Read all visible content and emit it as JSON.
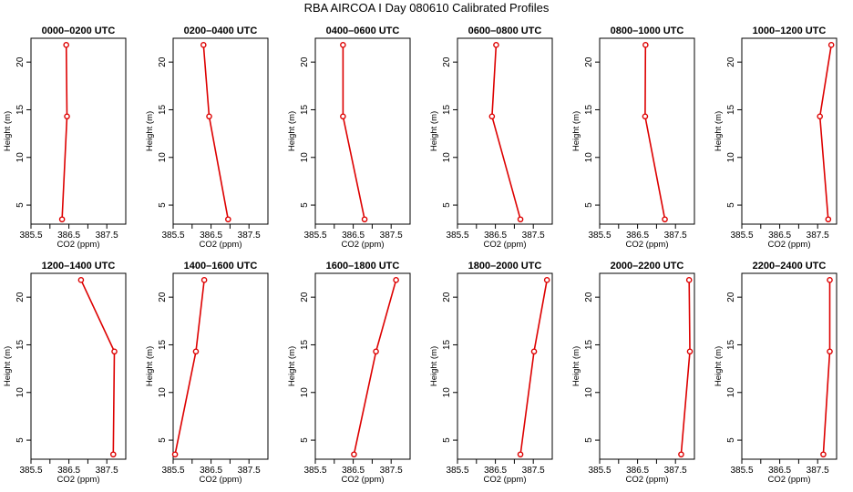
{
  "title": "RBA AIRCOA I  Day 080610  Calibrated Profiles",
  "colors": {
    "line": "#dd0000",
    "axis": "#000000",
    "background": "#ffffff"
  },
  "chart_data": {
    "type": "line",
    "layout": "2x6 panel grid",
    "xlabel": "CO2 (ppm)",
    "ylabel": "Height (m)",
    "xlim": [
      385.5,
      388.0
    ],
    "ylim": [
      3,
      22.5
    ],
    "xticks": [
      385.5,
      386,
      386.5,
      387,
      387.5
    ],
    "xtick_labels": [
      "385.5",
      "",
      "386.5",
      "",
      "387.5"
    ],
    "yticks": [
      5,
      10,
      15,
      20
    ],
    "ytick_labels": [
      "5",
      "10",
      "15",
      "20"
    ],
    "grid": false,
    "heights": [
      3.5,
      14.3,
      21.8
    ],
    "panels": [
      {
        "title": "0000–0200 UTC",
        "co2": [
          386.32,
          386.45,
          386.43
        ]
      },
      {
        "title": "0200–0400 UTC",
        "co2": [
          386.95,
          386.45,
          386.3
        ]
      },
      {
        "title": "0400–0600 UTC",
        "co2": [
          386.8,
          386.23,
          386.23
        ]
      },
      {
        "title": "0600–0800 UTC",
        "co2": [
          387.16,
          386.41,
          386.52
        ]
      },
      {
        "title": "0800–1000 UTC",
        "co2": [
          387.22,
          386.7,
          386.71
        ]
      },
      {
        "title": "1000–1200 UTC",
        "co2": [
          387.78,
          387.56,
          387.86
        ]
      },
      {
        "title": "1200–1400 UTC",
        "co2": [
          387.67,
          387.7,
          386.82
        ]
      },
      {
        "title": "1400–1600 UTC",
        "co2": [
          385.55,
          386.1,
          386.32
        ]
      },
      {
        "title": "1600–1800 UTC",
        "co2": [
          386.52,
          387.1,
          387.63
        ]
      },
      {
        "title": "1800–2000 UTC",
        "co2": [
          387.16,
          387.52,
          387.86
        ]
      },
      {
        "title": "2000–2200 UTC",
        "co2": [
          387.65,
          387.88,
          387.86
        ]
      },
      {
        "title": "2200–2400 UTC",
        "co2": [
          387.65,
          387.82,
          387.82
        ]
      }
    ]
  }
}
